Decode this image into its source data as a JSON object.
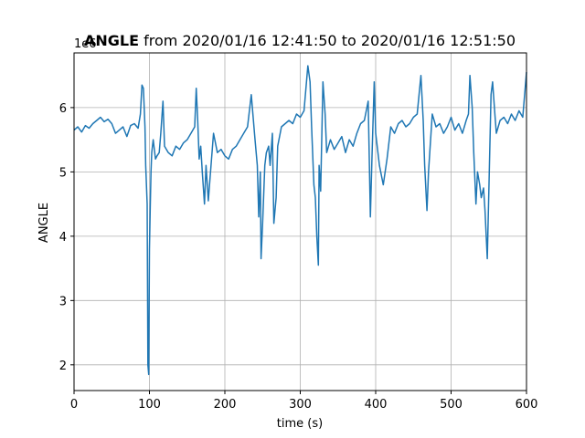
{
  "chart_data": {
    "type": "line",
    "title_bold": "ANGLE",
    "title_rest": " from 2020/01/16 12:41:50 to 2020/01/16 12:51:50",
    "xlabel": "time (s)",
    "ylabel": "ANGLE",
    "y_offset_label": "1e6",
    "xlim": [
      0,
      600
    ],
    "ylim": [
      1.6,
      6.85
    ],
    "xticks": [
      0,
      100,
      200,
      300,
      400,
      500,
      600
    ],
    "yticks": [
      2,
      3,
      4,
      5,
      6
    ],
    "grid": true,
    "line_color": "#1f77b4",
    "series": [
      {
        "x": [
          0,
          5,
          10,
          15,
          20,
          25,
          30,
          35,
          40,
          45,
          50,
          55,
          60,
          65,
          70,
          75,
          80,
          85,
          88,
          90,
          92,
          94,
          95,
          97,
          98,
          99,
          100,
          101,
          102,
          103,
          105,
          108,
          110,
          113,
          115,
          118,
          120,
          125,
          130,
          135,
          140,
          145,
          150,
          155,
          160,
          162,
          164,
          166,
          168,
          170,
          173,
          175,
          178,
          180,
          185,
          190,
          195,
          200,
          205,
          210,
          215,
          220,
          225,
          230,
          235,
          240,
          243,
          245,
          247,
          248,
          250,
          253,
          255,
          258,
          260,
          263,
          265,
          268,
          270,
          275,
          280,
          285,
          290,
          295,
          300,
          305,
          310,
          313,
          315,
          318,
          320,
          322,
          324,
          325,
          327,
          330,
          333,
          335,
          340,
          345,
          350,
          355,
          360,
          365,
          370,
          375,
          380,
          385,
          390,
          393,
          395,
          398,
          400,
          405,
          410,
          415,
          420,
          425,
          430,
          435,
          440,
          445,
          450,
          455,
          460,
          463,
          465,
          468,
          470,
          475,
          480,
          485,
          490,
          495,
          500,
          505,
          510,
          515,
          520,
          523,
          525,
          528,
          530,
          533,
          535,
          538,
          540,
          543,
          545,
          548,
          550,
          553,
          555,
          558,
          560,
          565,
          570,
          575,
          580,
          585,
          590,
          595,
          600
        ],
        "y": [
          5.65,
          5.7,
          5.62,
          5.72,
          5.68,
          5.75,
          5.8,
          5.85,
          5.78,
          5.82,
          5.75,
          5.6,
          5.65,
          5.7,
          5.55,
          5.72,
          5.75,
          5.68,
          5.9,
          6.35,
          6.3,
          5.7,
          5.1,
          4.5,
          2.0,
          1.85,
          3.8,
          4.4,
          5.0,
          5.3,
          5.5,
          5.2,
          5.25,
          5.3,
          5.6,
          6.1,
          5.4,
          5.3,
          5.25,
          5.4,
          5.35,
          5.45,
          5.5,
          5.6,
          5.7,
          6.3,
          5.8,
          5.2,
          5.4,
          5.0,
          4.5,
          5.1,
          4.55,
          4.85,
          5.6,
          5.3,
          5.35,
          5.25,
          5.2,
          5.35,
          5.4,
          5.5,
          5.6,
          5.7,
          6.2,
          5.5,
          5.1,
          4.3,
          5.0,
          3.65,
          4.2,
          5.1,
          5.3,
          5.4,
          5.1,
          5.6,
          4.2,
          4.6,
          5.4,
          5.7,
          5.75,
          5.8,
          5.75,
          5.9,
          5.85,
          5.95,
          6.65,
          6.4,
          5.7,
          4.8,
          4.6,
          4.0,
          3.55,
          5.1,
          4.7,
          6.4,
          5.9,
          5.3,
          5.5,
          5.35,
          5.45,
          5.55,
          5.3,
          5.5,
          5.4,
          5.6,
          5.75,
          5.8,
          6.1,
          4.3,
          5.2,
          6.4,
          5.6,
          5.1,
          4.8,
          5.2,
          5.7,
          5.6,
          5.75,
          5.8,
          5.7,
          5.75,
          5.85,
          5.9,
          6.5,
          5.8,
          5.1,
          4.4,
          5.0,
          5.9,
          5.7,
          5.75,
          5.6,
          5.7,
          5.85,
          5.65,
          5.75,
          5.6,
          5.8,
          5.9,
          6.5,
          6.0,
          5.3,
          4.5,
          5.0,
          4.8,
          4.6,
          4.75,
          4.4,
          3.65,
          4.7,
          6.2,
          6.4,
          5.9,
          5.6,
          5.8,
          5.85,
          5.75,
          5.9,
          5.8,
          5.95,
          5.85,
          6.55
        ]
      }
    ]
  }
}
